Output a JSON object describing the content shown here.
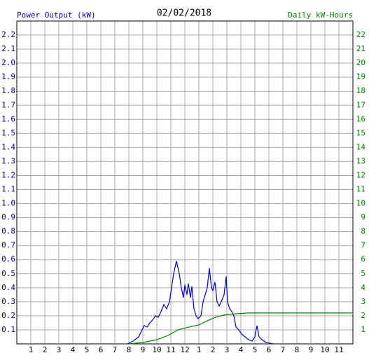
{
  "chart_data": {
    "type": "line",
    "title": "02/02/2018",
    "y_label": "Power Output (kW)",
    "y2_label": "Daily kW-Hours",
    "xlim": [
      0,
      24
    ],
    "xticks": [
      1,
      2,
      3,
      4,
      5,
      6,
      7,
      8,
      9,
      10,
      11,
      12,
      {
        "value": 13,
        "label": "1"
      },
      {
        "value": 14,
        "label": "2"
      },
      {
        "value": 15,
        "label": "3"
      },
      {
        "value": 16,
        "label": "4"
      },
      {
        "value": 17,
        "label": "5"
      },
      {
        "value": 18,
        "label": "6"
      },
      {
        "value": 19,
        "label": "7"
      },
      {
        "value": 20,
        "label": "8"
      },
      {
        "value": 21,
        "label": "9"
      },
      {
        "value": 22,
        "label": "10"
      },
      {
        "value": 23,
        "label": "11"
      }
    ],
    "ylim": [
      0,
      2.3
    ],
    "yticks": [
      0.1,
      0.2,
      0.3,
      0.4,
      0.5,
      0.6,
      0.7,
      0.8,
      0.9,
      {
        "value": 1,
        "label": "1.0"
      },
      1.1,
      1.2,
      1.3,
      1.4,
      1.5,
      1.6,
      1.7,
      1.8,
      1.9,
      {
        "value": 2,
        "label": "2.0"
      },
      2.1,
      2.2
    ],
    "y2lim": [
      0,
      23
    ],
    "y2ticks": [
      1,
      2,
      3,
      4,
      5,
      6,
      7,
      8,
      9,
      10,
      11,
      12,
      13,
      14,
      15,
      16,
      17,
      18,
      19,
      20,
      21,
      22
    ],
    "grid": true,
    "series": [
      {
        "name": "Power Output (kW)",
        "color": "#0000cc",
        "x": [
          7.9,
          8.3,
          8.7,
          8.95,
          9.1,
          9.3,
          9.5,
          9.7,
          9.9,
          10.1,
          10.3,
          10.5,
          10.7,
          10.9,
          11.05,
          11.2,
          11.4,
          11.6,
          11.75,
          11.9,
          12.0,
          12.15,
          12.25,
          12.4,
          12.5,
          12.65,
          12.8,
          12.95,
          13.15,
          13.3,
          13.45,
          13.6,
          13.75,
          13.9,
          14.0,
          14.15,
          14.3,
          14.45,
          14.6,
          14.8,
          14.95,
          15.05,
          15.2,
          15.35,
          15.5,
          15.65,
          15.85,
          16.05,
          16.3,
          16.55,
          16.8,
          17.0,
          17.15,
          17.3,
          17.5,
          17.8,
          18.3
        ],
        "values": [
          0,
          0.02,
          0.05,
          0.1,
          0.13,
          0.12,
          0.15,
          0.17,
          0.2,
          0.19,
          0.23,
          0.28,
          0.25,
          0.3,
          0.4,
          0.5,
          0.59,
          0.5,
          0.4,
          0.33,
          0.42,
          0.35,
          0.43,
          0.33,
          0.41,
          0.25,
          0.2,
          0.18,
          0.2,
          0.3,
          0.35,
          0.4,
          0.54,
          0.4,
          0.38,
          0.44,
          0.3,
          0.27,
          0.3,
          0.35,
          0.48,
          0.3,
          0.25,
          0.23,
          0.2,
          0.12,
          0.1,
          0.07,
          0.05,
          0.03,
          0.02,
          0.05,
          0.13,
          0.05,
          0.03,
          0.01,
          0
        ]
      },
      {
        "name": "Daily kW-Hours",
        "color": "#008000",
        "axis": "y2",
        "x": [
          8.0,
          9.0,
          10.0,
          10.8,
          11.5,
          12.3,
          13.0,
          13.5,
          14.2,
          15.0,
          15.8,
          16.5,
          23.95
        ],
        "values": [
          0,
          0.1,
          0.3,
          0.6,
          1.0,
          1.2,
          1.35,
          1.6,
          1.9,
          2.1,
          2.15,
          2.2,
          2.2
        ]
      }
    ]
  }
}
